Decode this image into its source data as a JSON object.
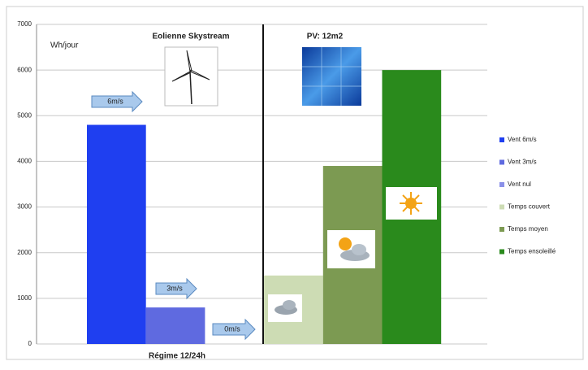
{
  "chart_data": {
    "type": "bar",
    "y_axis_label": "Wh/jour",
    "annotations": [
      "Eolienne Skystream",
      "PV: 12m2"
    ],
    "arrow_labels": [
      "6m/s",
      "3m/s",
      "0m/s"
    ],
    "categories": [
      "Régime 12/24h"
    ],
    "series": [
      {
        "name": "Vent 6m/s",
        "color": "#1f3ff0",
        "values": [
          4800
        ]
      },
      {
        "name": "Vent 3m/s",
        "color": "#5f6ae0",
        "values": [
          800
        ]
      },
      {
        "name": "Vent nul",
        "color": "#8a90e8",
        "values": [
          0
        ]
      },
      {
        "name": "Temps couvert",
        "color": "#cddcb4",
        "values": [
          1500
        ]
      },
      {
        "name": "Temps moyen",
        "color": "#7c9a52",
        "values": [
          3900
        ]
      },
      {
        "name": "Temps ensoleillé",
        "color": "#2a8a1c",
        "values": [
          6000
        ]
      }
    ],
    "ylim": [
      0,
      7000
    ],
    "yticks": [
      0,
      1000,
      2000,
      3000,
      4000,
      5000,
      6000,
      7000
    ],
    "grid": true,
    "legend": "right"
  }
}
